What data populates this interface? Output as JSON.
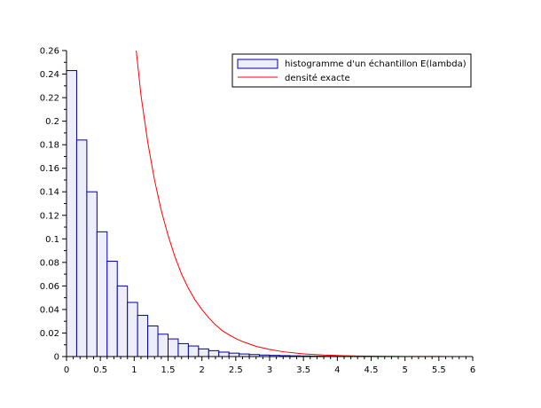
{
  "chart_data": {
    "type": "bar",
    "title": "",
    "xlabel": "",
    "ylabel": "",
    "xlim": [
      0,
      6
    ],
    "ylim": [
      0,
      0.26
    ],
    "grid": false,
    "legend_position": "top-right",
    "x_ticks": [
      "0",
      "0.5",
      "1",
      "1.5",
      "2",
      "2.5",
      "3",
      "3.5",
      "4",
      "4.5",
      "5",
      "5.5",
      "6"
    ],
    "y_ticks": [
      "0",
      "0.02",
      "0.04",
      "0.06",
      "0.08",
      "0.1",
      "0.12",
      "0.14",
      "0.16",
      "0.18",
      "0.2",
      "0.22",
      "0.24",
      "0.26"
    ],
    "series": [
      {
        "name": "histogramme d'un échantillon E(lambda)",
        "type": "histogram",
        "bin_width": 0.15,
        "bin_start": 0.0,
        "values": [
          0.243,
          0.184,
          0.14,
          0.106,
          0.081,
          0.06,
          0.046,
          0.035,
          0.026,
          0.019,
          0.015,
          0.011,
          0.009,
          0.0065,
          0.005,
          0.0038,
          0.0029,
          0.0022,
          0.0017,
          0.0013,
          0.001,
          0.0008,
          0.0006,
          0.0005,
          0.0004,
          0.0003,
          0.00025,
          0.0002
        ],
        "color": "#0000aa",
        "fill": "#eeeefa"
      },
      {
        "name": "densité exacte",
        "type": "line",
        "color": "#ff0000",
        "x": [
          1.03,
          1.1,
          1.2,
          1.3,
          1.4,
          1.5,
          1.6,
          1.7,
          1.8,
          1.9,
          2.0,
          2.1,
          2.2,
          2.3,
          2.4,
          2.5,
          2.6,
          2.8,
          3.0,
          3.2,
          3.5,
          3.8,
          4.0,
          4.3,
          4.6,
          5.0,
          5.5,
          6.0
        ],
        "y": [
          0.26,
          0.222,
          0.182,
          0.15,
          0.124,
          0.103,
          0.085,
          0.07,
          0.058,
          0.048,
          0.04,
          0.033,
          0.027,
          0.022,
          0.0185,
          0.0153,
          0.0127,
          0.0087,
          0.006,
          0.0041,
          0.0023,
          0.0013,
          0.0009,
          0.0005,
          0.0003,
          0.00013,
          5e-05,
          2e-05
        ]
      }
    ]
  }
}
